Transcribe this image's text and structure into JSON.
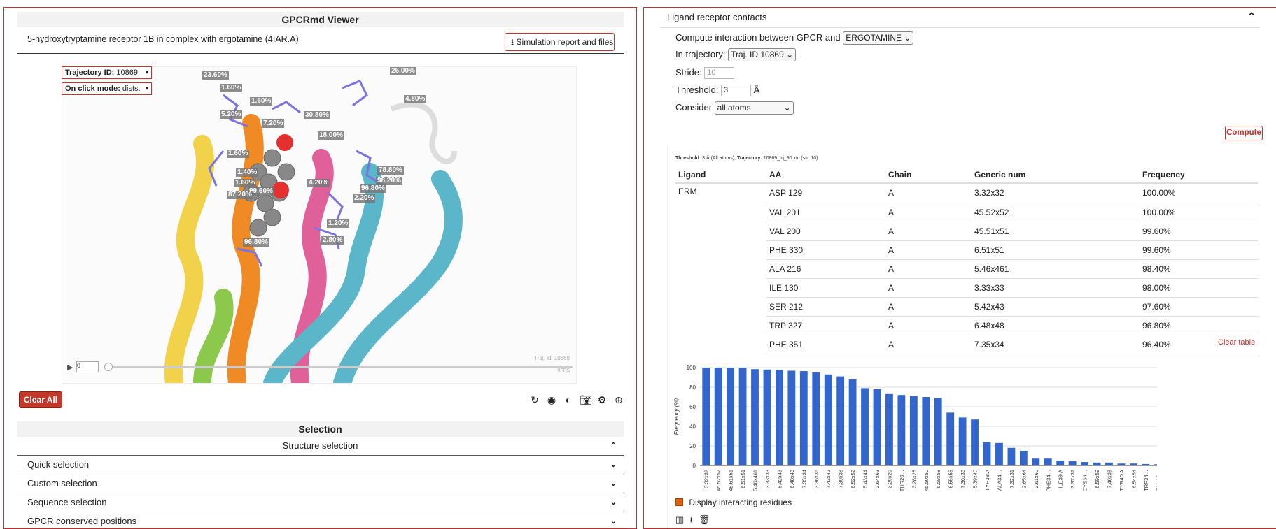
{
  "viewer": {
    "header": "GPCRmd Viewer",
    "sim_title": "5-hydroxytryptamine receptor 1B in complex with ergotamine (4IAR.A)",
    "sim_report_label": "Simulation report and files",
    "traj_label": "Trajectory ID:",
    "traj_value": "10869",
    "click_label": "On click mode:",
    "click_value": "dists.",
    "frame": "0",
    "watermark_traj": "Traj. id: 10869",
    "watermark_fps": "0FPS",
    "clear_all": "Clear All",
    "contact_labels": [
      "23.60%",
      "1.60%",
      "1.60%",
      "5.20%",
      "7.20%",
      "18.00%",
      "30.80%",
      "1.60%",
      "96.80%",
      "99.60%",
      "87.20%",
      "1.60%",
      "4.20%",
      "78.80%",
      "98.20%",
      "1.20%",
      "2.80%",
      "2.20%",
      "96.80%",
      "4.80%",
      "26.00%",
      "1.40%"
    ]
  },
  "selection": {
    "header": "Selection",
    "items": [
      {
        "label": "Structure selection",
        "open": true
      },
      {
        "label": "Quick selection",
        "open": false
      },
      {
        "label": "Custom selection",
        "open": false
      },
      {
        "label": "Sequence selection",
        "open": false
      },
      {
        "label": "GPCR conserved positions",
        "open": false
      }
    ]
  },
  "contacts": {
    "header": "Ligand receptor contacts",
    "compute_between": "Compute interaction between GPCR and",
    "ligand": "ERGOTAMINE",
    "in_trajectory": "In trajectory:",
    "trajectory": "Traj. ID 10869",
    "stride_label": "Stride:",
    "stride": "10",
    "threshold_label": "Threshold:",
    "threshold": "3",
    "threshold_unit": "Å",
    "consider_label": "Consider",
    "consider": "all atoms",
    "compute": "Compute",
    "info_bold1": "Threshold:",
    "info_text1": "3 Å (All atoms),",
    "info_bold2": "Trajectory:",
    "info_text2": "10869_trj_90.xtc (str: 10)",
    "clear_table": "Clear table",
    "display_interacting": "Display interacting residues"
  },
  "table": {
    "headers": [
      "Ligand",
      "AA",
      "Chain",
      "Generic num",
      "Frequency"
    ],
    "ligand": "ERM",
    "rows": [
      [
        "ASP 129",
        "A",
        "3.32x32",
        "100.00%"
      ],
      [
        "VAL 201",
        "A",
        "45.52x52",
        "100.00%"
      ],
      [
        "VAL 200",
        "A",
        "45.51x51",
        "99.60%"
      ],
      [
        "PHE 330",
        "A",
        "6.51x51",
        "99.60%"
      ],
      [
        "ALA 216",
        "A",
        "5.46x461",
        "98.40%"
      ],
      [
        "ILE 130",
        "A",
        "3.33x33",
        "98.00%"
      ],
      [
        "SER 212",
        "A",
        "5.42x43",
        "97.60%"
      ],
      [
        "TRP 327",
        "A",
        "6.48x48",
        "96.80%"
      ],
      [
        "PHE 351",
        "A",
        "7.35x34",
        "96.40%"
      ]
    ]
  },
  "chart_data": {
    "type": "bar",
    "ylabel": "Frequency (%)",
    "ylim": [
      0,
      100
    ],
    "yticks": [
      0,
      20,
      40,
      60,
      80,
      100
    ],
    "color": "#3366cc",
    "categories": [
      "3.32x32",
      "45.52x52",
      "45.51x51",
      "6.51x51",
      "5.46x461",
      "3.33x33",
      "5.42x43",
      "6.48x48",
      "7.35x34",
      "3.36x36",
      "7.43x42",
      "7.39x38",
      "6.52x52",
      "5.43x44",
      "2.64x63",
      "3.29x29",
      "THR20…",
      "3.28x28",
      "45.50x50",
      "6.58x58",
      "6.55x55",
      "7.36x35",
      "5.39x40",
      "TYR38.A",
      "ALA34…",
      "7.32x31",
      "2.65x64",
      "2.61x60",
      "PHE34…",
      "ILE39.A",
      "3.37x37",
      "CYS34…",
      "6.59x59",
      "7.40x39",
      "TYR40.A",
      "6.54x54",
      "TRP34…",
      "GLU19…"
    ],
    "values": [
      100,
      100,
      99.6,
      99.6,
      98.4,
      98,
      97.6,
      96.8,
      96.4,
      95,
      93,
      91,
      88,
      79,
      78,
      73,
      72,
      71,
      70,
      69,
      54,
      49,
      47,
      24,
      23,
      18,
      15,
      7,
      7,
      5,
      4.5,
      3.5,
      3,
      3,
      2,
      2,
      1.5,
      1.2
    ]
  }
}
